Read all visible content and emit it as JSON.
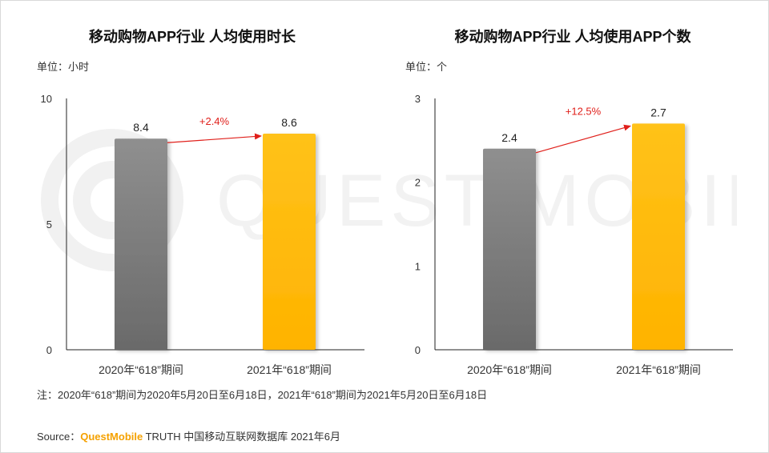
{
  "chart_data": [
    {
      "type": "bar",
      "title": "移动购物APP行业 人均使用时长",
      "unit_label": "单位：小时",
      "categories": [
        "2020年“618”期间",
        "2021年“618”期间"
      ],
      "values": [
        8.4,
        8.6
      ],
      "value_labels": [
        "8.4",
        "8.6"
      ],
      "ylim": [
        0,
        10
      ],
      "yticks": [
        0,
        5,
        10
      ],
      "growth_label": "+2.4%",
      "colors": [
        "#808080",
        "#FFB914"
      ],
      "grid": false
    },
    {
      "type": "bar",
      "title": "移动购物APP行业 人均使用APP个数",
      "unit_label": "单位：个",
      "categories": [
        "2020年“618”期间",
        "2021年“618”期间"
      ],
      "values": [
        2.4,
        2.7
      ],
      "value_labels": [
        "2.4",
        "2.7"
      ],
      "ylim": [
        0,
        3
      ],
      "yticks": [
        0,
        1,
        2,
        3
      ],
      "growth_label": "+12.5%",
      "colors": [
        "#808080",
        "#FFB914"
      ],
      "grid": false
    }
  ],
  "note": "注：2020年“618”期间为2020年5月20日至6月18日，2021年“618”期间为2021年5月20日至6月18日",
  "source": {
    "prefix": "Source：",
    "brand": "QuestMobile",
    "rest": " TRUTH 中国移动互联网数据库 2021年6月"
  },
  "watermark_text": "QUEST MOBILE",
  "accent_color": "#F5A100"
}
